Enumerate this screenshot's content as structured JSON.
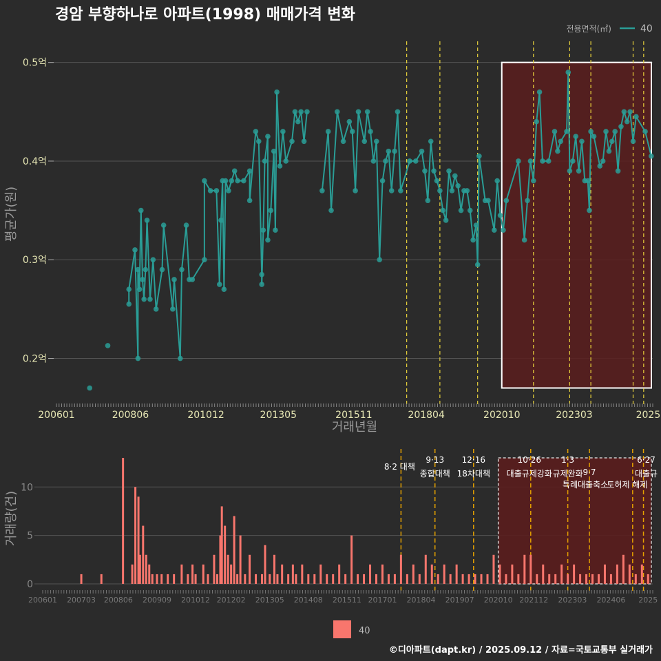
{
  "title": "경암 부향하나로 아파트(1998) 매매가격 변화",
  "legend_title": "전용면적(㎡)",
  "legend_label": "40",
  "footer": "©디아파트(dapt.kr) / 2025.09.12 / 자료=국토교통부 실거래가",
  "colors": {
    "line": "#2a9d96",
    "bar": "#f8766d",
    "vline": "#e8d23c",
    "vline2": "#e5a100",
    "box": "#ffffff",
    "shade": "#5a1d1d",
    "text": "#dddddd",
    "axis_text": "#e6e6b4"
  },
  "chart_data": [
    {
      "type": "line",
      "title": "경암 부향하나로 아파트(1998) 매매가격 변화",
      "xlabel": "거래년월",
      "ylabel": "평균가(원)",
      "x_ticks": [
        "200601",
        "200806",
        "201012",
        "201305",
        "201511",
        "201804",
        "202010",
        "202303",
        "2025"
      ],
      "y_ticks": [
        "0.2억",
        "0.3억",
        "0.4억",
        "0.5억"
      ],
      "y_tick_values": [
        0.2,
        0.3,
        0.4,
        0.5
      ],
      "ylim": [
        0.155,
        0.52
      ],
      "xlim": [
        2006.0,
        2025.75
      ],
      "grid": true,
      "legend": "top-right",
      "series": [
        {
          "name": "40",
          "points": [
            [
              2007.1,
              0.17
            ],
            [
              2007.7,
              0.213
            ],
            [
              2008.4,
              0.255
            ],
            [
              2008.4,
              0.27
            ],
            [
              2008.6,
              0.31
            ],
            [
              2008.7,
              0.2
            ],
            [
              2008.7,
              0.29
            ],
            [
              2008.75,
              0.27
            ],
            [
              2008.8,
              0.35
            ],
            [
              2008.85,
              0.28
            ],
            [
              2008.9,
              0.26
            ],
            [
              2008.95,
              0.29
            ],
            [
              2009.0,
              0.34
            ],
            [
              2009.1,
              0.26
            ],
            [
              2009.2,
              0.3
            ],
            [
              2009.3,
              0.25
            ],
            [
              2009.5,
              0.29
            ],
            [
              2009.55,
              0.335
            ],
            [
              2009.85,
              0.25
            ],
            [
              2009.9,
              0.28
            ],
            [
              2010.1,
              0.2
            ],
            [
              2010.15,
              0.29
            ],
            [
              2010.3,
              0.335
            ],
            [
              2010.4,
              0.28
            ],
            [
              2010.5,
              0.28
            ],
            [
              2010.9,
              0.3
            ],
            [
              2010.9,
              0.38
            ],
            [
              2011.1,
              0.37
            ],
            [
              2011.3,
              0.37
            ],
            [
              2011.4,
              0.275
            ],
            [
              2011.45,
              0.34
            ],
            [
              2011.5,
              0.38
            ],
            [
              2011.55,
              0.27
            ],
            [
              2011.6,
              0.38
            ],
            [
              2011.7,
              0.37
            ],
            [
              2011.8,
              0.38
            ],
            [
              2011.9,
              0.39
            ],
            [
              2012.0,
              0.38
            ],
            [
              2012.2,
              0.38
            ],
            [
              2012.4,
              0.39
            ],
            [
              2012.4,
              0.36
            ],
            [
              2012.6,
              0.43
            ],
            [
              2012.7,
              0.42
            ],
            [
              2012.8,
              0.285
            ],
            [
              2012.8,
              0.275
            ],
            [
              2012.85,
              0.33
            ],
            [
              2012.9,
              0.4
            ],
            [
              2013.0,
              0.425
            ],
            [
              2013.0,
              0.32
            ],
            [
              2013.1,
              0.35
            ],
            [
              2013.2,
              0.41
            ],
            [
              2013.25,
              0.33
            ],
            [
              2013.3,
              0.47
            ],
            [
              2013.4,
              0.395
            ],
            [
              2013.5,
              0.43
            ],
            [
              2013.6,
              0.4
            ],
            [
              2013.8,
              0.42
            ],
            [
              2013.9,
              0.45
            ],
            [
              2014.0,
              0.44
            ],
            [
              2014.1,
              0.45
            ],
            [
              2014.2,
              0.42
            ],
            [
              2014.3,
              0.45
            ],
            [
              2014.8,
              0.37
            ],
            [
              2015.0,
              0.43
            ],
            [
              2015.1,
              0.35
            ],
            [
              2015.3,
              0.45
            ],
            [
              2015.5,
              0.42
            ],
            [
              2015.7,
              0.44
            ],
            [
              2015.8,
              0.43
            ],
            [
              2015.9,
              0.37
            ],
            [
              2016.0,
              0.45
            ],
            [
              2016.2,
              0.42
            ],
            [
              2016.3,
              0.45
            ],
            [
              2016.4,
              0.43
            ],
            [
              2016.5,
              0.4
            ],
            [
              2016.6,
              0.42
            ],
            [
              2016.7,
              0.3
            ],
            [
              2016.8,
              0.38
            ],
            [
              2016.9,
              0.4
            ],
            [
              2017.0,
              0.41
            ],
            [
              2017.1,
              0.37
            ],
            [
              2017.2,
              0.41
            ],
            [
              2017.3,
              0.45
            ],
            [
              2017.4,
              0.37
            ],
            [
              2017.7,
              0.4
            ],
            [
              2017.9,
              0.4
            ],
            [
              2018.1,
              0.41
            ],
            [
              2018.2,
              0.39
            ],
            [
              2018.3,
              0.36
            ],
            [
              2018.4,
              0.42
            ],
            [
              2018.5,
              0.39
            ],
            [
              2018.6,
              0.38
            ],
            [
              2018.7,
              0.37
            ],
            [
              2018.8,
              0.35
            ],
            [
              2018.9,
              0.34
            ],
            [
              2019.0,
              0.39
            ],
            [
              2019.1,
              0.37
            ],
            [
              2019.2,
              0.385
            ],
            [
              2019.3,
              0.375
            ],
            [
              2019.4,
              0.35
            ],
            [
              2019.5,
              0.37
            ],
            [
              2019.6,
              0.37
            ],
            [
              2019.7,
              0.35
            ],
            [
              2019.8,
              0.32
            ],
            [
              2019.9,
              0.335
            ],
            [
              2019.95,
              0.295
            ],
            [
              2020.0,
              0.405
            ],
            [
              2020.2,
              0.36
            ],
            [
              2020.3,
              0.36
            ],
            [
              2020.5,
              0.33
            ],
            [
              2020.6,
              0.38
            ],
            [
              2020.7,
              0.345
            ],
            [
              2020.8,
              0.33
            ],
            [
              2020.9,
              0.36
            ],
            [
              2021.3,
              0.4
            ],
            [
              2021.5,
              0.32
            ],
            [
              2021.6,
              0.36
            ],
            [
              2021.7,
              0.4
            ],
            [
              2021.8,
              0.38
            ],
            [
              2021.9,
              0.44
            ],
            [
              2022.0,
              0.47
            ],
            [
              2022.1,
              0.4
            ],
            [
              2022.3,
              0.4
            ],
            [
              2022.5,
              0.43
            ],
            [
              2022.6,
              0.41
            ],
            [
              2022.7,
              0.42
            ],
            [
              2022.9,
              0.43
            ],
            [
              2022.95,
              0.49
            ],
            [
              2023.0,
              0.39
            ],
            [
              2023.1,
              0.4
            ],
            [
              2023.2,
              0.425
            ],
            [
              2023.3,
              0.39
            ],
            [
              2023.4,
              0.42
            ],
            [
              2023.5,
              0.38
            ],
            [
              2023.6,
              0.38
            ],
            [
              2023.65,
              0.35
            ],
            [
              2023.7,
              0.43
            ],
            [
              2023.8,
              0.425
            ],
            [
              2024.0,
              0.395
            ],
            [
              2024.1,
              0.4
            ],
            [
              2024.2,
              0.43
            ],
            [
              2024.3,
              0.41
            ],
            [
              2024.4,
              0.42
            ],
            [
              2024.5,
              0.43
            ],
            [
              2024.6,
              0.39
            ],
            [
              2024.7,
              0.435
            ],
            [
              2024.8,
              0.45
            ],
            [
              2024.9,
              0.44
            ],
            [
              2025.0,
              0.45
            ],
            [
              2025.1,
              0.42
            ],
            [
              2025.2,
              0.445
            ],
            [
              2025.5,
              0.43
            ],
            [
              2025.7,
              0.405
            ]
          ]
        }
      ],
      "vlines": [
        2017.6,
        2018.7,
        2019.95,
        2021.8,
        2023.0,
        2023.7,
        2025.1,
        2025.45
      ],
      "highlight_range": {
        "x": [
          2020.75,
          2025.75
        ],
        "y": [
          0.17,
          0.5
        ]
      }
    },
    {
      "type": "bar",
      "ylabel": "거래량(건)",
      "x_ticks": [
        "200601",
        "200703",
        "200806",
        "200909",
        "201012",
        "201202",
        "201305",
        "201408",
        "201511",
        "201701",
        "201804",
        "201907",
        "202010",
        "202112",
        "202303",
        "202406",
        "2025"
      ],
      "y_ticks": [
        "0",
        "5",
        "10"
      ],
      "y_tick_values": [
        0,
        5,
        10
      ],
      "ylim": [
        0,
        13.5
      ],
      "legend": "bottom",
      "series_name": "40",
      "bars": [
        [
          2007.25,
          1
        ],
        [
          2007.9,
          1
        ],
        [
          2008.6,
          13
        ],
        [
          2008.9,
          2
        ],
        [
          2009.0,
          10
        ],
        [
          2009.1,
          9
        ],
        [
          2009.15,
          3
        ],
        [
          2009.25,
          6
        ],
        [
          2009.35,
          3
        ],
        [
          2009.45,
          2
        ],
        [
          2009.55,
          1
        ],
        [
          2009.7,
          1
        ],
        [
          2009.85,
          1
        ],
        [
          2010.05,
          1
        ],
        [
          2010.25,
          1
        ],
        [
          2010.5,
          2
        ],
        [
          2010.7,
          1
        ],
        [
          2010.85,
          2
        ],
        [
          2010.95,
          1
        ],
        [
          2011.2,
          2
        ],
        [
          2011.35,
          1
        ],
        [
          2011.55,
          3
        ],
        [
          2011.65,
          1
        ],
        [
          2011.75,
          5
        ],
        [
          2011.8,
          8
        ],
        [
          2011.9,
          6
        ],
        [
          2012.0,
          3
        ],
        [
          2012.1,
          2
        ],
        [
          2012.2,
          7
        ],
        [
          2012.3,
          1
        ],
        [
          2012.4,
          5
        ],
        [
          2012.55,
          1
        ],
        [
          2012.7,
          3
        ],
        [
          2012.9,
          1
        ],
        [
          2013.1,
          1
        ],
        [
          2013.2,
          4
        ],
        [
          2013.35,
          1
        ],
        [
          2013.5,
          3
        ],
        [
          2013.6,
          1
        ],
        [
          2013.75,
          2
        ],
        [
          2013.95,
          1
        ],
        [
          2014.1,
          2
        ],
        [
          2014.2,
          1
        ],
        [
          2014.4,
          2
        ],
        [
          2014.6,
          1
        ],
        [
          2014.8,
          1
        ],
        [
          2015.0,
          2
        ],
        [
          2015.2,
          1
        ],
        [
          2015.4,
          1
        ],
        [
          2015.6,
          2
        ],
        [
          2015.8,
          1
        ],
        [
          2016.0,
          5
        ],
        [
          2016.2,
          1
        ],
        [
          2016.4,
          1
        ],
        [
          2016.6,
          2
        ],
        [
          2016.8,
          1
        ],
        [
          2017.0,
          2
        ],
        [
          2017.2,
          1
        ],
        [
          2017.4,
          1
        ],
        [
          2017.6,
          3
        ],
        [
          2017.8,
          1
        ],
        [
          2018.0,
          2
        ],
        [
          2018.2,
          1
        ],
        [
          2018.4,
          3
        ],
        [
          2018.6,
          2
        ],
        [
          2018.8,
          1
        ],
        [
          2019.0,
          2
        ],
        [
          2019.2,
          1
        ],
        [
          2019.4,
          2
        ],
        [
          2019.6,
          1
        ],
        [
          2019.8,
          1
        ],
        [
          2020.0,
          1
        ],
        [
          2020.2,
          1
        ],
        [
          2020.4,
          1
        ],
        [
          2020.6,
          3
        ],
        [
          2020.8,
          2
        ],
        [
          2021.0,
          1
        ],
        [
          2021.2,
          2
        ],
        [
          2021.4,
          1
        ],
        [
          2021.6,
          3
        ],
        [
          2021.8,
          3
        ],
        [
          2022.0,
          1
        ],
        [
          2022.2,
          2
        ],
        [
          2022.4,
          1
        ],
        [
          2022.6,
          1
        ],
        [
          2022.8,
          2
        ],
        [
          2023.0,
          1
        ],
        [
          2023.2,
          2
        ],
        [
          2023.4,
          1
        ],
        [
          2023.6,
          1
        ],
        [
          2023.8,
          1
        ],
        [
          2024.0,
          1
        ],
        [
          2024.2,
          2
        ],
        [
          2024.4,
          1
        ],
        [
          2024.6,
          2
        ],
        [
          2024.8,
          3
        ],
        [
          2025.0,
          2
        ],
        [
          2025.2,
          1
        ],
        [
          2025.4,
          2
        ],
        [
          2025.6,
          1
        ]
      ],
      "vlines": [
        2017.6,
        2018.7,
        2019.95,
        2021.8,
        2023.0,
        2023.7,
        2025.1,
        2025.45
      ],
      "annotations": [
        {
          "x": 2017.6,
          "line1": "8·2 대책",
          "line2": ""
        },
        {
          "x": 2018.7,
          "line1": "9·13",
          "line2": "종합대책"
        },
        {
          "x": 2019.95,
          "line1": "12·16",
          "line2": "18차대책"
        },
        {
          "x": 2021.8,
          "line1": "10·26",
          "line2": "대출규제강화"
        },
        {
          "x": 2023.0,
          "line1": "1·3",
          "line2": "규제완화"
        },
        {
          "x": 2023.7,
          "line1": "",
          "line2": "9·7"
        },
        {
          "x": 2023.7,
          "line1": "",
          "line2": "특례대출축소"
        },
        {
          "x": 2025.1,
          "line1": "",
          "line2": "토허제 해제"
        },
        {
          "x": 2025.45,
          "line1": "6·27",
          "line2": "대출규"
        }
      ],
      "highlight_range": {
        "x": [
          2020.75,
          2025.75
        ],
        "y": [
          0,
          13
        ]
      }
    }
  ]
}
